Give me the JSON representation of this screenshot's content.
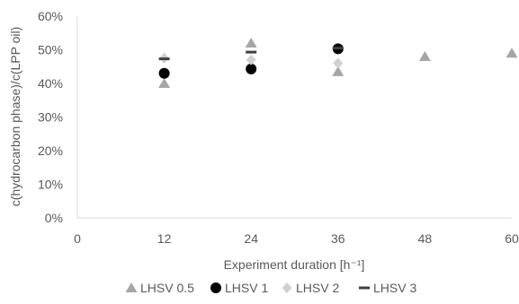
{
  "chart_data": {
    "type": "scatter",
    "xlabel": "Experiment duration [h⁻¹]",
    "ylabel": "c(hydrocarbon phase)/c(LPP oil)",
    "xlim": [
      0,
      60
    ],
    "ylim": [
      0,
      60
    ],
    "x_ticks": [
      0,
      12,
      24,
      36,
      48,
      60
    ],
    "x_tick_labels": [
      "0",
      "12",
      "24",
      "36",
      "48",
      "60"
    ],
    "y_ticks": [
      0,
      10,
      20,
      30,
      40,
      50,
      60
    ],
    "y_tick_labels": [
      "0%",
      "10%",
      "20%",
      "30%",
      "40%",
      "50%",
      "60%"
    ],
    "grid": false,
    "legend_position": "bottom",
    "series": [
      {
        "name": "LHSV 0.5",
        "marker": "triangle",
        "color": "#a6a6a6",
        "points": [
          [
            12,
            40.0
          ],
          [
            24,
            52.0
          ],
          [
            36,
            43.5
          ],
          [
            48,
            48.0
          ],
          [
            60,
            49.0
          ]
        ]
      },
      {
        "name": "LHSV 1",
        "marker": "circle",
        "color": "#000000",
        "points": [
          [
            12,
            43.0
          ],
          [
            24,
            44.3
          ],
          [
            36,
            50.3
          ]
        ]
      },
      {
        "name": "LHSV 2",
        "marker": "diamond",
        "color": "#d0d0d0",
        "points": [
          [
            12,
            47.5
          ],
          [
            24,
            47.0
          ],
          [
            36,
            46.0
          ]
        ]
      },
      {
        "name": "LHSV 3",
        "marker": "dash",
        "color": "#404040",
        "points": [
          [
            12,
            47.3
          ],
          [
            24,
            49.3
          ],
          [
            36,
            50.5
          ]
        ]
      }
    ]
  }
}
